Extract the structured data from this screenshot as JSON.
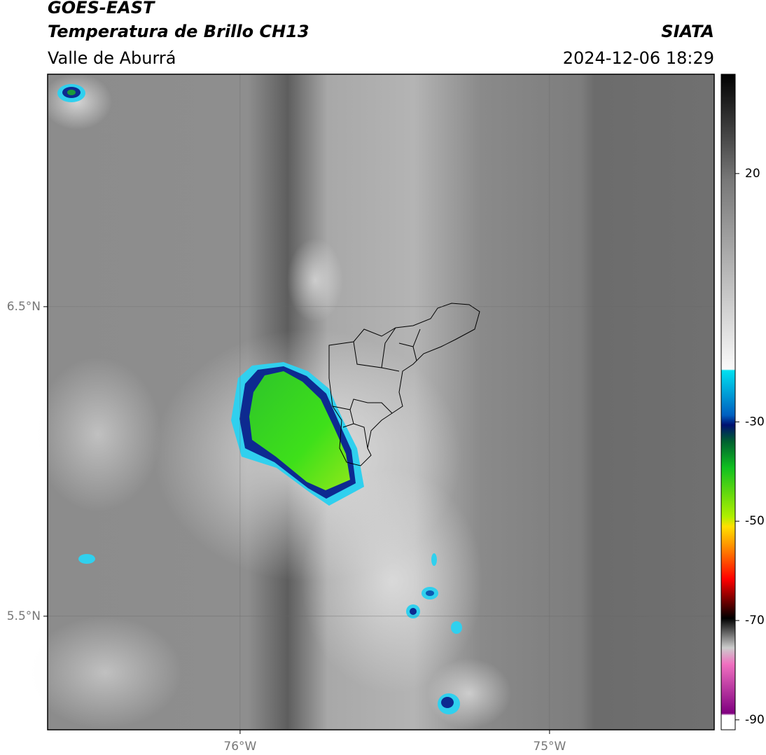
{
  "header": {
    "title": "GOES-EAST",
    "subtitle": "Temperatura de Brillo CH13",
    "source": "SIATA",
    "region": "Valle de Aburrá",
    "datetime": "2024-12-06 18:29"
  },
  "map": {
    "lon_lim": [
      -76.622,
      -74.468
    ],
    "lat_lim": [
      5.133,
      7.251
    ],
    "lon_ticks": [
      {
        "value": -76,
        "label": "76°W"
      },
      {
        "value": -75,
        "label": "75°W"
      }
    ],
    "lat_ticks": [
      {
        "value": 6.5,
        "label": "6.5°N"
      },
      {
        "value": 5.5,
        "label": "5.5°N"
      }
    ]
  },
  "colorbar": {
    "lim": [
      -92,
      40
    ],
    "ticks": [
      20,
      -30,
      -50,
      -70,
      -90
    ]
  }
}
